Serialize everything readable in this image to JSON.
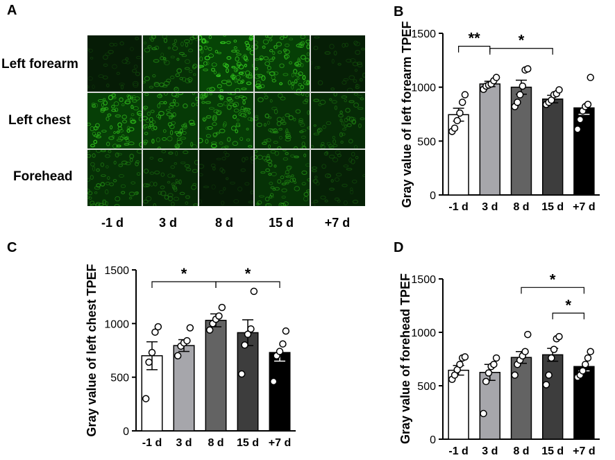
{
  "panelA": {
    "letter": "A",
    "rows": [
      "Left forearm",
      "Left chest",
      "Forehead"
    ],
    "columns": [
      "-1 d",
      "3 d",
      "8 d",
      "15 d",
      "+7 d"
    ],
    "brightness": [
      [
        0.15,
        0.55,
        0.95,
        0.85,
        0.2
      ],
      [
        0.85,
        0.75,
        0.8,
        0.6,
        0.45
      ],
      [
        0.55,
        0.4,
        0.12,
        0.6,
        0.25
      ]
    ]
  },
  "chart_data": [
    {
      "panel": "B",
      "type": "bar",
      "categories": [
        "-1 d",
        "3 d",
        "8 d",
        "15 d",
        "+7 d"
      ],
      "values": [
        745,
        1030,
        1000,
        890,
        808
      ],
      "sem": [
        60,
        25,
        65,
        35,
        60
      ],
      "points": [
        [
          590,
          620,
          690,
          760,
          860,
          930
        ],
        [
          980,
          1010,
          1020,
          1030,
          1060,
          1090
        ],
        [
          820,
          860,
          930,
          1010,
          1160,
          1170
        ],
        [
          840,
          860,
          880,
          930,
          940,
          975
        ],
        [
          610,
          700,
          780,
          820,
          840,
          1090
        ]
      ],
      "bar_colors": [
        "#ffffff",
        "#a6a6ab",
        "#636363",
        "#3d3d3d",
        "#000000"
      ],
      "ylabel": "Gray value of left forearm TPEF",
      "ylim": [
        0,
        1500
      ],
      "yticks": [
        0,
        500,
        1000,
        1500
      ],
      "significance": [
        {
          "from": 0,
          "to": 1,
          "label": "**"
        },
        {
          "from": 1,
          "to": 3,
          "label": "*"
        }
      ]
    },
    {
      "panel": "C",
      "type": "bar",
      "categories": [
        "-1 d",
        "3 d",
        "8 d",
        "15 d",
        "+7 d"
      ],
      "values": [
        700,
        795,
        1030,
        915,
        730
      ],
      "sem": [
        130,
        55,
        60,
        120,
        80
      ],
      "points": [
        [
          300,
          640,
          730,
          920,
          970
        ],
        [
          700,
          790,
          820,
          840,
          960
        ],
        [
          940,
          1000,
          1040,
          1070,
          1150
        ],
        [
          530,
          800,
          900,
          950,
          1300
        ],
        [
          460,
          700,
          740,
          810,
          930
        ]
      ],
      "bar_colors": [
        "#ffffff",
        "#a6a6ab",
        "#636363",
        "#3d3d3d",
        "#000000"
      ],
      "ylabel": "Gray value of left chest TPEF",
      "ylim": [
        0,
        1500
      ],
      "yticks": [
        0,
        500,
        1000,
        1500
      ],
      "significance": [
        {
          "from": 0,
          "to": 2,
          "label": "*"
        },
        {
          "from": 2,
          "to": 4,
          "label": "*"
        }
      ]
    },
    {
      "panel": "D",
      "type": "bar",
      "categories": [
        "-1 d",
        "3 d",
        "8 d",
        "15 d",
        "+7 d"
      ],
      "values": [
        645,
        625,
        765,
        790,
        680
      ],
      "sem": [
        45,
        75,
        55,
        60,
        40
      ],
      "points": [
        [
          560,
          600,
          650,
          700,
          760,
          770
        ],
        [
          240,
          540,
          620,
          680,
          700,
          760
        ],
        [
          600,
          700,
          740,
          780,
          820,
          980
        ],
        [
          510,
          600,
          760,
          840,
          940,
          960
        ],
        [
          580,
          600,
          640,
          700,
          760,
          820
        ]
      ],
      "bar_colors": [
        "#ffffff",
        "#a6a6ab",
        "#636363",
        "#3d3d3d",
        "#000000"
      ],
      "ylabel": "Gray value of forehead TPEF",
      "ylim": [
        0,
        1500
      ],
      "yticks": [
        0,
        500,
        1000,
        1500
      ],
      "significance": [
        {
          "from": 2,
          "to": 4,
          "label": "*"
        },
        {
          "from": 3,
          "to": 4,
          "label": "*"
        }
      ]
    }
  ]
}
